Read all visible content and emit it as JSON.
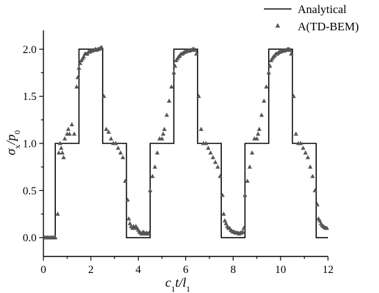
{
  "chart_data": {
    "type": "line",
    "xlabel": "c1t/l1",
    "ylabel": "σx/p0",
    "xlim": [
      0,
      12
    ],
    "ylim": [
      -0.2,
      2.2
    ],
    "x_ticks": [
      "0",
      "2",
      "4",
      "6",
      "8",
      "10",
      "12"
    ],
    "y_ticks": [
      "0.0",
      "0.5",
      "1.0",
      "1.5",
      "2.0"
    ],
    "x_tick_values": [
      0,
      2,
      4,
      6,
      8,
      10,
      12
    ],
    "y_tick_values": [
      0.0,
      0.5,
      1.0,
      1.5,
      2.0
    ],
    "grid": false,
    "legend_position": "top-right",
    "series": [
      {
        "name": "Analytical",
        "style": "line",
        "color": "#000000",
        "x": [
          0,
          0.5,
          0.5,
          1.5,
          1.5,
          2.5,
          2.5,
          3.5,
          3.5,
          4.5,
          4.5,
          5.5,
          5.5,
          6.5,
          6.5,
          7.5,
          7.5,
          8.5,
          8.5,
          9.5,
          9.5,
          10.5,
          10.5,
          11.5,
          11.5,
          12
        ],
        "y": [
          0,
          0,
          1,
          1,
          2,
          2,
          1,
          1,
          0,
          0,
          1,
          1,
          2,
          2,
          1,
          1,
          0,
          0,
          1,
          1,
          2,
          2,
          1,
          1,
          0,
          0
        ]
      },
      {
        "name": "A(TD-BEM)",
        "style": "triangle-markers",
        "color": "#555555",
        "x": [
          0.05,
          0.1,
          0.15,
          0.2,
          0.25,
          0.3,
          0.35,
          0.4,
          0.45,
          0.5,
          0.6,
          0.65,
          0.7,
          0.75,
          0.8,
          0.85,
          0.9,
          1.0,
          1.05,
          1.1,
          1.2,
          1.3,
          1.4,
          1.45,
          1.5,
          1.55,
          1.6,
          1.65,
          1.7,
          1.75,
          1.8,
          1.85,
          1.9,
          1.95,
          2.0,
          2.05,
          2.1,
          2.15,
          2.2,
          2.25,
          2.3,
          2.35,
          2.4,
          2.45,
          2.55,
          2.65,
          2.75,
          2.85,
          2.95,
          3.05,
          3.15,
          3.25,
          3.35,
          3.45,
          3.55,
          3.6,
          3.65,
          3.7,
          3.75,
          3.8,
          3.85,
          3.9,
          3.95,
          4.0,
          4.05,
          4.1,
          4.15,
          4.2,
          4.25,
          4.3,
          4.35,
          4.4,
          4.45,
          4.5,
          4.6,
          4.7,
          4.8,
          4.9,
          5.0,
          5.05,
          5.1,
          5.2,
          5.3,
          5.4,
          5.5,
          5.55,
          5.6,
          5.65,
          5.7,
          5.75,
          5.8,
          5.85,
          5.9,
          5.95,
          6.0,
          6.05,
          6.1,
          6.15,
          6.2,
          6.25,
          6.3,
          6.35,
          6.4,
          6.45,
          6.55,
          6.65,
          6.75,
          6.85,
          6.95,
          7.05,
          7.15,
          7.25,
          7.35,
          7.45,
          7.55,
          7.6,
          7.65,
          7.7,
          7.75,
          7.8,
          7.85,
          7.9,
          7.95,
          8.0,
          8.05,
          8.1,
          8.15,
          8.2,
          8.25,
          8.3,
          8.35,
          8.4,
          8.45,
          8.5,
          8.6,
          8.7,
          8.8,
          8.9,
          9.0,
          9.05,
          9.1,
          9.2,
          9.3,
          9.4,
          9.5,
          9.55,
          9.6,
          9.65,
          9.7,
          9.75,
          9.8,
          9.85,
          9.9,
          9.95,
          10.0,
          10.05,
          10.1,
          10.15,
          10.2,
          10.25,
          10.3,
          10.35,
          10.4,
          10.45,
          10.55,
          10.65,
          10.75,
          10.85,
          10.95,
          11.05,
          11.15,
          11.25,
          11.35,
          11.45,
          11.55,
          11.6,
          11.65,
          11.7,
          11.75,
          11.8,
          11.85,
          11.9,
          11.95
        ],
        "y": [
          0.0,
          0.0,
          0.0,
          0.0,
          0.0,
          0.0,
          0.0,
          0.0,
          0.0,
          0.0,
          0.25,
          0.9,
          1.0,
          0.95,
          0.9,
          0.85,
          1.05,
          1.1,
          1.15,
          1.1,
          1.2,
          1.1,
          1.6,
          1.7,
          1.8,
          1.85,
          1.88,
          1.9,
          1.92,
          1.95,
          1.95,
          1.95,
          1.97,
          1.97,
          1.98,
          1.98,
          1.99,
          1.99,
          2.0,
          1.99,
          2.0,
          2.0,
          2.01,
          2.02,
          1.5,
          1.15,
          1.12,
          1.05,
          1.0,
          1.0,
          0.95,
          0.9,
          0.85,
          0.6,
          0.4,
          0.2,
          0.15,
          0.12,
          0.1,
          0.12,
          0.1,
          0.12,
          0.1,
          0.08,
          0.06,
          0.05,
          0.04,
          0.06,
          0.05,
          0.04,
          0.05,
          0.04,
          0.05,
          0.5,
          0.65,
          0.75,
          0.9,
          1.05,
          1.05,
          1.1,
          1.15,
          1.3,
          1.45,
          1.6,
          1.75,
          1.82,
          1.88,
          1.9,
          1.92,
          1.93,
          1.95,
          1.95,
          1.96,
          1.97,
          1.97,
          1.98,
          1.98,
          1.98,
          1.99,
          1.99,
          2.0,
          2.0,
          1.99,
          1.95,
          1.5,
          1.15,
          1.0,
          1.0,
          0.95,
          0.9,
          0.85,
          0.8,
          0.75,
          0.65,
          0.45,
          0.25,
          0.18,
          0.15,
          0.12,
          0.1,
          0.1,
          0.08,
          0.07,
          0.06,
          0.06,
          0.05,
          0.05,
          0.05,
          0.04,
          0.05,
          0.05,
          0.06,
          0.1,
          0.45,
          0.6,
          0.75,
          0.9,
          1.05,
          1.05,
          1.1,
          1.15,
          1.3,
          1.45,
          1.6,
          1.75,
          1.82,
          1.88,
          1.9,
          1.92,
          1.93,
          1.95,
          1.95,
          1.96,
          1.97,
          1.97,
          1.98,
          1.98,
          1.98,
          1.99,
          1.99,
          2.0,
          2.0,
          1.99,
          1.95,
          1.5,
          1.1,
          1.0,
          1.0,
          0.95,
          0.9,
          0.85,
          0.75,
          0.65,
          0.5,
          0.35,
          0.2,
          0.18,
          0.15,
          0.13,
          0.12,
          0.11,
          0.1,
          0.1
        ]
      }
    ]
  }
}
